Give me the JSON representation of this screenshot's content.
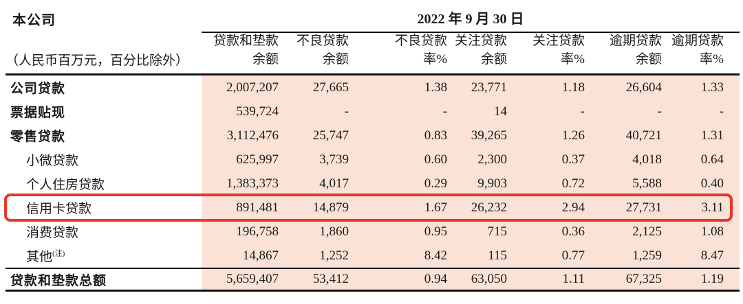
{
  "page": {
    "company_label": "本公司",
    "date_header": "2022 年 9 月 30 日",
    "unit_note": "（人民币百万元，百分比除外）"
  },
  "columns": [
    {
      "line1": "贷款和垫款",
      "line2": "余额"
    },
    {
      "line1": "不良贷款",
      "line2": "余额"
    },
    {
      "line1": "不良贷款",
      "line2": "率%"
    },
    {
      "line1": "关注贷款",
      "line2": "余额"
    },
    {
      "line1": "关注贷款",
      "line2": "率%"
    },
    {
      "line1": "逾期贷款",
      "line2": "余额"
    },
    {
      "line1": "逾期贷款",
      "line2": "率%"
    }
  ],
  "rows": [
    {
      "label": "公司贷款",
      "bold": true,
      "indent": false,
      "highlighted": false,
      "values": [
        "2,007,207",
        "27,665",
        "1.38",
        "23,771",
        "1.18",
        "26,604",
        "1.33"
      ]
    },
    {
      "label": "票据贴现",
      "bold": true,
      "indent": false,
      "highlighted": false,
      "values": [
        "539,724",
        "-",
        "-",
        "14",
        "-",
        "-",
        "-"
      ]
    },
    {
      "label": "零售贷款",
      "bold": true,
      "indent": false,
      "highlighted": false,
      "values": [
        "3,112,476",
        "25,747",
        "0.83",
        "39,265",
        "1.26",
        "40,721",
        "1.31"
      ]
    },
    {
      "label": "小微贷款",
      "bold": false,
      "indent": true,
      "highlighted": false,
      "values": [
        "625,997",
        "3,739",
        "0.60",
        "2,300",
        "0.37",
        "4,018",
        "0.64"
      ]
    },
    {
      "label": "个人住房贷款",
      "bold": false,
      "indent": true,
      "highlighted": false,
      "values": [
        "1,383,373",
        "4,017",
        "0.29",
        "9,903",
        "0.72",
        "5,588",
        "0.40"
      ]
    },
    {
      "label": "信用卡贷款",
      "bold": false,
      "indent": true,
      "highlighted": true,
      "values": [
        "891,481",
        "14,879",
        "1.67",
        "26,232",
        "2.94",
        "27,731",
        "3.11"
      ]
    },
    {
      "label": "消费贷款",
      "bold": false,
      "indent": true,
      "highlighted": false,
      "values": [
        "196,758",
        "1,860",
        "0.95",
        "715",
        "0.36",
        "2,125",
        "1.08"
      ]
    },
    {
      "label": "其他",
      "superscript": "(注)",
      "bold": false,
      "indent": true,
      "highlighted": false,
      "values": [
        "14,867",
        "1,252",
        "8.42",
        "115",
        "0.77",
        "1,259",
        "8.47"
      ]
    }
  ],
  "total_row": {
    "label": "贷款和垫款总额",
    "values": [
      "5,659,407",
      "53,412",
      "0.94",
      "63,050",
      "1.11",
      "67,325",
      "1.19"
    ]
  },
  "colors": {
    "stripe_bg": "#fbe2d6",
    "highlight_border": "#e8362b",
    "text": "#1a1a1a"
  }
}
